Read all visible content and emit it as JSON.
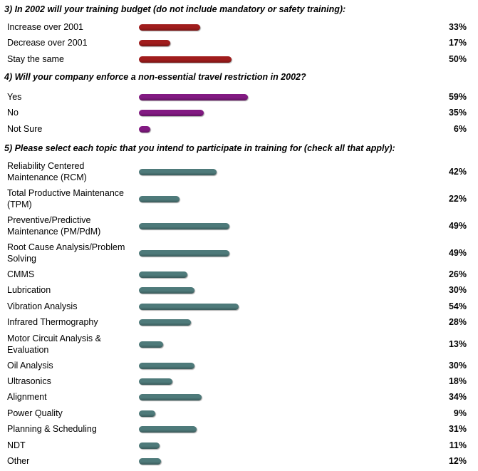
{
  "colors": {
    "q3": "#a01c1c",
    "q4": "#821a82",
    "q5": "#4e7a7a"
  },
  "chart_data": [
    {
      "type": "bar",
      "title": "3) In 2002 will your training budget (do not include mandatory or safety training):",
      "categories": [
        "Increase over 2001",
        "Decrease over 2001",
        "Stay the same"
      ],
      "values": [
        33,
        17,
        50
      ],
      "value_labels": [
        "33%",
        "17%",
        "50%"
      ]
    },
    {
      "type": "bar",
      "title": "4) Will your company enforce a non-essential travel restriction in 2002?",
      "categories": [
        "Yes",
        "No",
        "Not Sure"
      ],
      "values": [
        59,
        35,
        6
      ],
      "value_labels": [
        "59%",
        "35%",
        "6%"
      ]
    },
    {
      "type": "bar",
      "title": "5) Please select each topic that you intend to participate in training for (check all that apply):",
      "categories": [
        "Reliability Centered Maintenance (RCM)",
        "Total Productive Maintenance (TPM)",
        "Preventive/Predictive Maintenance (PM/PdM)",
        "Root Cause Analysis/Problem Solving",
        "CMMS",
        "Lubrication",
        "Vibration Analysis",
        "Infrared Thermography",
        "Motor Circuit Analysis & Evaluation",
        "Oil Analysis",
        "Ultrasonics",
        "Alignment",
        "Power Quality",
        "Planning & Scheduling",
        "NDT",
        "Other"
      ],
      "values": [
        42,
        22,
        49,
        49,
        26,
        30,
        54,
        28,
        13,
        30,
        18,
        34,
        9,
        31,
        11,
        12
      ],
      "value_labels": [
        "42%",
        "22%",
        "49%",
        "49%",
        "26%",
        "30%",
        "54%",
        "28%",
        "13%",
        "30%",
        "18%",
        "34%",
        "9%",
        "31%",
        "11%",
        "12%"
      ]
    }
  ]
}
